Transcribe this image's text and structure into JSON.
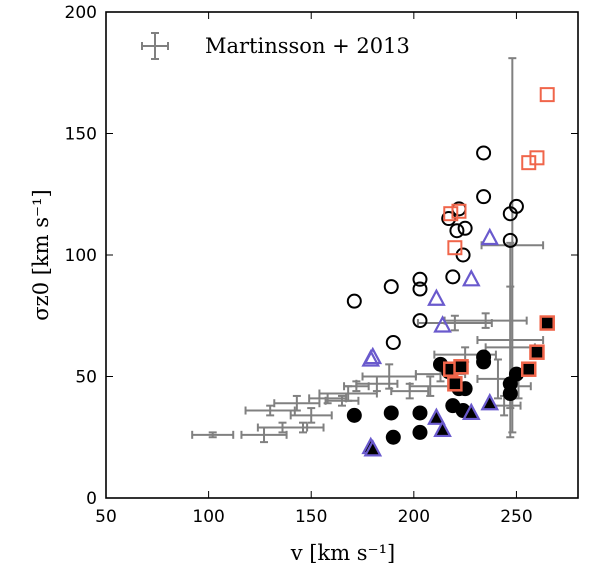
{
  "chart_data": {
    "type": "scatter",
    "xlabel": "v [km s⁻¹]",
    "ylabel": "σz0 [km s⁻¹]",
    "xlim": [
      50,
      280
    ],
    "ylim": [
      0,
      200
    ],
    "xticks": [
      50,
      100,
      150,
      200,
      250
    ],
    "yticks": [
      0,
      50,
      100,
      150,
      200
    ],
    "grid": false,
    "legend_position": "top-left",
    "legend": [
      {
        "label": "Martinsson + 2013",
        "marker": "errorbar-cross",
        "color": "#808080"
      }
    ],
    "colors": {
      "errorbar": "#808080",
      "open_circle": "#000000",
      "filled_circle": "#000000",
      "square": "#f0654a",
      "triangle": "#6a5acd"
    },
    "errorbar_series": {
      "name": "Martinsson + 2013",
      "points": [
        {
          "x": 102,
          "y": 26,
          "xerr": 10,
          "yerr": 1
        },
        {
          "x": 127,
          "y": 26,
          "xerr": 11,
          "yerr": 3
        },
        {
          "x": 136,
          "y": 29,
          "xerr": 12,
          "yerr": 2
        },
        {
          "x": 146,
          "y": 29,
          "xerr": 10,
          "yerr": 2
        },
        {
          "x": 130,
          "y": 36,
          "xerr": 12,
          "yerr": 2
        },
        {
          "x": 150,
          "y": 34,
          "xerr": 10,
          "yerr": 3
        },
        {
          "x": 143,
          "y": 39,
          "xerr": 11,
          "yerr": 3
        },
        {
          "x": 158,
          "y": 41,
          "xerr": 9,
          "yerr": 2
        },
        {
          "x": 165,
          "y": 40,
          "xerr": 8,
          "yerr": 2
        },
        {
          "x": 168,
          "y": 43,
          "xerr": 14,
          "yerr": 3
        },
        {
          "x": 172,
          "y": 46,
          "xerr": 6,
          "yerr": 2
        },
        {
          "x": 182,
          "y": 47,
          "xerr": 10,
          "yerr": 3
        },
        {
          "x": 188,
          "y": 50,
          "xerr": 13,
          "yerr": 5
        },
        {
          "x": 198,
          "y": 44,
          "xerr": 9,
          "yerr": 3
        },
        {
          "x": 208,
          "y": 46,
          "xerr": 10,
          "yerr": 4
        },
        {
          "x": 213,
          "y": 51,
          "xerr": 12,
          "yerr": 3
        },
        {
          "x": 225,
          "y": 59,
          "xerr": 15,
          "yerr": 3
        },
        {
          "x": 220,
          "y": 72,
          "xerr": 18,
          "yerr": 3
        },
        {
          "x": 235,
          "y": 73,
          "xerr": 20,
          "yerr": 3
        },
        {
          "x": 247,
          "y": 62,
          "xerr": 12,
          "yerr": 25
        },
        {
          "x": 247,
          "y": 65,
          "xerr": 16,
          "yerr": 40
        },
        {
          "x": 248,
          "y": 104,
          "xerr": 15,
          "yerr": 77
        },
        {
          "x": 241,
          "y": 49,
          "xerr": 10,
          "yerr": 8
        },
        {
          "x": 244,
          "y": 38,
          "xerr": 8,
          "yerr": 4
        },
        {
          "x": 251,
          "y": 46,
          "xerr": 6,
          "yerr": 5
        }
      ]
    },
    "scatter_series": [
      {
        "marker": "open-circle",
        "points": [
          [
            171,
            81
          ],
          [
            189,
            87
          ],
          [
            190,
            64
          ],
          [
            203,
            90
          ],
          [
            203,
            86
          ],
          [
            203,
            73
          ],
          [
            217,
            115
          ],
          [
            219,
            91
          ],
          [
            221,
            110
          ],
          [
            222,
            119
          ],
          [
            224,
            100
          ],
          [
            225,
            111
          ],
          [
            234,
            142
          ],
          [
            234,
            124
          ],
          [
            247,
            117
          ],
          [
            247,
            106
          ],
          [
            250,
            120
          ]
        ]
      },
      {
        "marker": "filled-circle",
        "points": [
          [
            171,
            34
          ],
          [
            189,
            35
          ],
          [
            190,
            25
          ],
          [
            203,
            27
          ],
          [
            203,
            35
          ],
          [
            219,
            38
          ],
          [
            222,
            45
          ],
          [
            224,
            36
          ],
          [
            225,
            45
          ],
          [
            234,
            58
          ],
          [
            234,
            56
          ],
          [
            247,
            47
          ],
          [
            247,
            43
          ],
          [
            250,
            51
          ],
          [
            213,
            55
          ],
          [
            217,
            52
          ]
        ]
      },
      {
        "marker": "open-square",
        "points": [
          [
            218,
            117
          ],
          [
            220,
            103
          ],
          [
            222,
            118
          ],
          [
            256,
            138
          ],
          [
            260,
            140
          ],
          [
            265,
            166
          ]
        ]
      },
      {
        "marker": "filled-square",
        "points": [
          [
            218,
            53
          ],
          [
            220,
            47
          ],
          [
            223,
            54
          ],
          [
            256,
            53
          ],
          [
            260,
            60
          ],
          [
            265,
            72
          ]
        ]
      },
      {
        "marker": "open-triangle",
        "points": [
          [
            179,
            57
          ],
          [
            180,
            58
          ],
          [
            211,
            82
          ],
          [
            214,
            71
          ],
          [
            228,
            90
          ],
          [
            237,
            107
          ]
        ]
      },
      {
        "marker": "filled-triangle",
        "points": [
          [
            179,
            21
          ],
          [
            180,
            20
          ],
          [
            211,
            33
          ],
          [
            214,
            28
          ],
          [
            228,
            35
          ],
          [
            237,
            39
          ]
        ]
      }
    ]
  }
}
